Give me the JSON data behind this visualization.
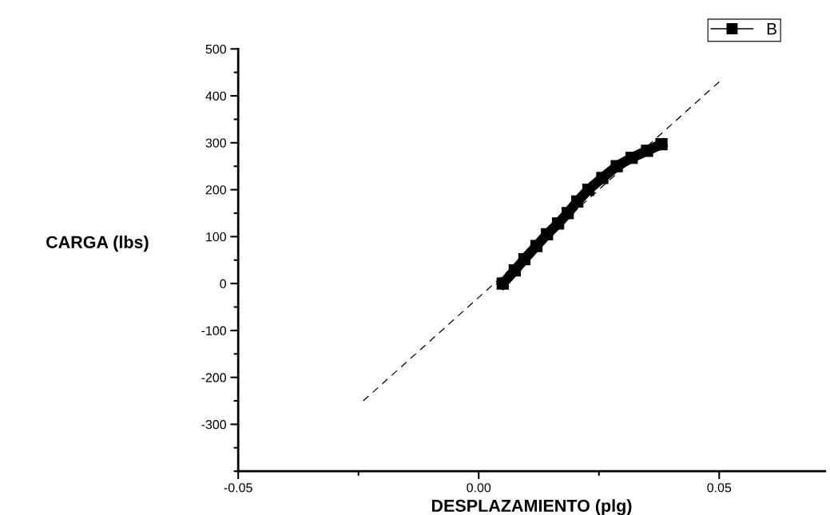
{
  "chart_data": {
    "type": "line",
    "xlabel": "DESPLAZAMIENTO (plg)",
    "ylabel": "CARGA (lbs)",
    "xlim": [
      -0.05,
      0.072
    ],
    "xticks": [
      {
        "value": -0.05,
        "label": "-0.05"
      },
      {
        "value": 0.0,
        "label": "0.00"
      },
      {
        "value": 0.05,
        "label": "0.05"
      }
    ],
    "ylim": [
      -400,
      500
    ],
    "yticks": [
      {
        "value": -300,
        "label": "-300"
      },
      {
        "value": -200,
        "label": "-200"
      },
      {
        "value": -100,
        "label": "-100"
      },
      0,
      100,
      200,
      300,
      400,
      500
    ],
    "legend": "top right",
    "grid": false,
    "series": [
      {
        "name": "B",
        "color": "#000000",
        "marker": "square",
        "line_style": "solid",
        "x": [
          0.005,
          0.0075,
          0.0095,
          0.012,
          0.0142,
          0.0165,
          0.0185,
          0.0205,
          0.0228,
          0.0257,
          0.0287,
          0.0318,
          0.035,
          0.038
        ],
        "values": [
          0,
          28,
          52,
          80,
          105,
          128,
          150,
          175,
          200,
          225,
          250,
          268,
          283,
          297
        ]
      },
      {
        "type": "line",
        "color": "#000000",
        "marker": "none",
        "line_style": "dashed",
        "x": [
          -0.024,
          0.05
        ],
        "values": [
          -250,
          430
        ]
      }
    ]
  }
}
